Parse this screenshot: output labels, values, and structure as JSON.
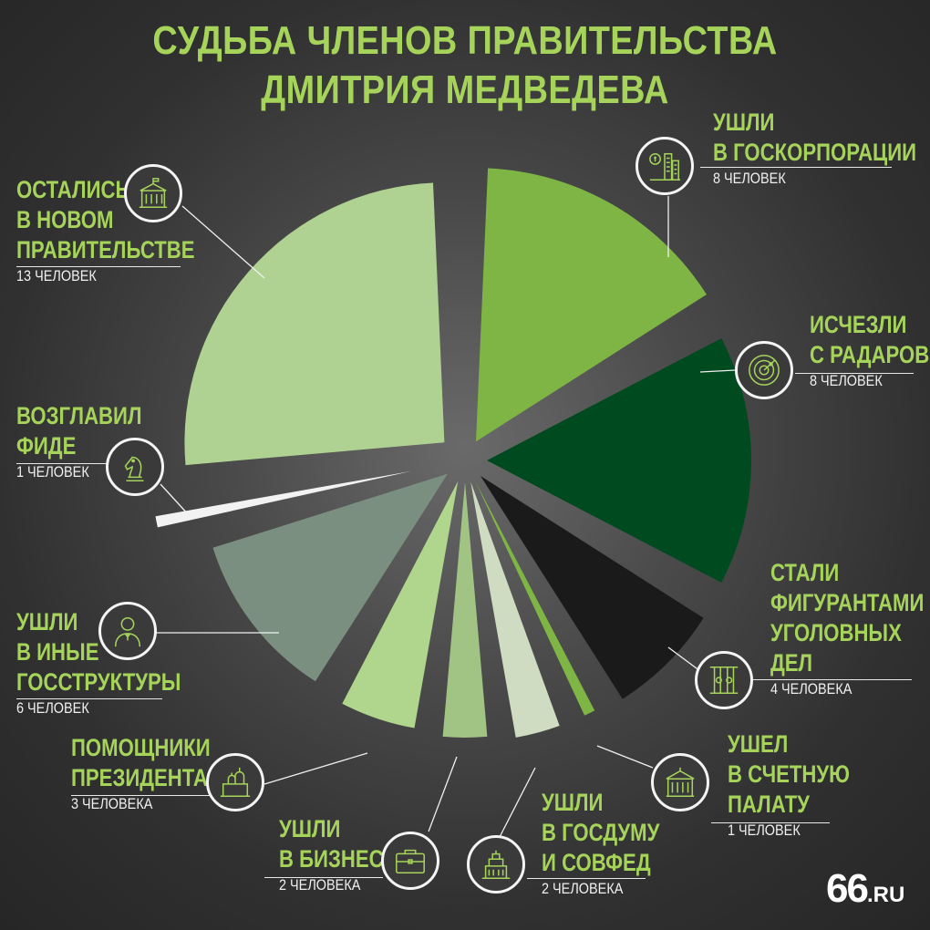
{
  "title": "СУДЬБА ЧЛЕНОВ ПРАВИТЕЛЬСТВА ДМИТРИЯ МЕДВЕДЕВА",
  "logo": {
    "main": "66",
    "suffix": ".RU"
  },
  "colors": {
    "accent": "#a6d45b"
  },
  "labels": {
    "goskorp": {
      "name": [
        "УШЛИ",
        "В ГОСКОРПОРАЦИИ"
      ],
      "count": "8 ЧЕЛОВЕК",
      "icon": "city-finance-icon"
    },
    "radar": {
      "name": [
        "ИСЧЕЗЛИ",
        "С РАДАРОВ"
      ],
      "count": "8 ЧЕЛОВЕК",
      "icon": "radar-icon"
    },
    "criminal": {
      "name": [
        "СТАЛИ",
        "ФИГУРАНТАМИ",
        "УГОЛОВНЫХ",
        "ДЕЛ"
      ],
      "count": "4 ЧЕЛОВЕКА",
      "icon": "prison-bars-icon"
    },
    "audit": {
      "name": [
        "УШЕЛ",
        "В СЧЕТНУЮ",
        "ПАЛАТУ"
      ],
      "count": "1 ЧЕЛОВЕК",
      "icon": "government-building-icon"
    },
    "duma": {
      "name": [
        "УШЛИ",
        "В ГОСДУМУ",
        "И СОВФЕД"
      ],
      "count": "2 ЧЕЛОВЕКА",
      "icon": "parliament-icon"
    },
    "business": {
      "name": [
        "УШЛИ",
        "В БИЗНЕС"
      ],
      "count": "2 ЧЕЛОВЕКА",
      "icon": "briefcase-icon"
    },
    "president": {
      "name": [
        "ПОМОЩНИКИ",
        "ПРЕЗИДЕНТА"
      ],
      "count": "3 ЧЕЛОВЕКА",
      "icon": "kremlin-icon"
    },
    "other": {
      "name": [
        "УШЛИ",
        "В ИНЫЕ",
        "ГОССТРУКТУРЫ"
      ],
      "count": "6 ЧЕЛОВЕК",
      "icon": "official-icon"
    },
    "fide": {
      "name": [
        "ВОЗГЛАВИЛ",
        "ФИДЕ"
      ],
      "count": "1 ЧЕЛОВЕК",
      "icon": "chess-knight-icon"
    },
    "stayed": {
      "name": [
        "ОСТАЛИСЬ",
        "В НОВОМ",
        "ПРАВИТЕЛЬСТВЕ"
      ],
      "count": "13 ЧЕЛОВЕК",
      "icon": "government-house-icon"
    }
  },
  "chart_data": {
    "type": "pie",
    "title": "СУДЬБА ЧЛЕНОВ ПРАВИТЕЛЬСТВА ДМИТРИЯ МЕДВЕДЕВА",
    "unit": "человек",
    "exploded": true,
    "legend": "none",
    "slices": [
      {
        "key": "goskorp",
        "label": "УШЛИ В ГОСКОРПОРАЦИИ",
        "value": 8,
        "color": "#7fb545"
      },
      {
        "key": "radar",
        "label": "ИСЧЕЗЛИ С РАДАРОВ",
        "value": 8,
        "color": "#004a1f"
      },
      {
        "key": "criminal",
        "label": "СТАЛИ ФИГУРАНТАМИ УГОЛОВНЫХ ДЕЛ",
        "value": 4,
        "color": "#1a1a1a"
      },
      {
        "key": "audit",
        "label": "УШЕЛ В СЧЕТНУЮ ПАЛАТУ",
        "value": 1,
        "color": "#7fb545"
      },
      {
        "key": "duma",
        "label": "УШЛИ В ГОСДУМУ И СОВФЕД",
        "value": 2,
        "color": "#cfdcc2"
      },
      {
        "key": "business",
        "label": "УШЛИ В БИЗНЕС",
        "value": 2,
        "color": "#a1c484"
      },
      {
        "key": "president",
        "label": "ПОМОЩНИКИ ПРЕЗИДЕНТА",
        "value": 3,
        "color": "#b0d58c"
      },
      {
        "key": "other",
        "label": "УШЛИ В ИНЫЕ ГОССТРУКТУРЫ",
        "value": 6,
        "color": "#7a8f80"
      },
      {
        "key": "fide",
        "label": "ВОЗГЛАВИЛ ФИДЕ",
        "value": 1,
        "color": "#f2f2f2"
      },
      {
        "key": "stayed",
        "label": "ОСТАЛИСЬ В НОВОМ ПРАВИТЕЛЬСТВЕ",
        "value": 13,
        "color": "#afd292"
      }
    ]
  }
}
